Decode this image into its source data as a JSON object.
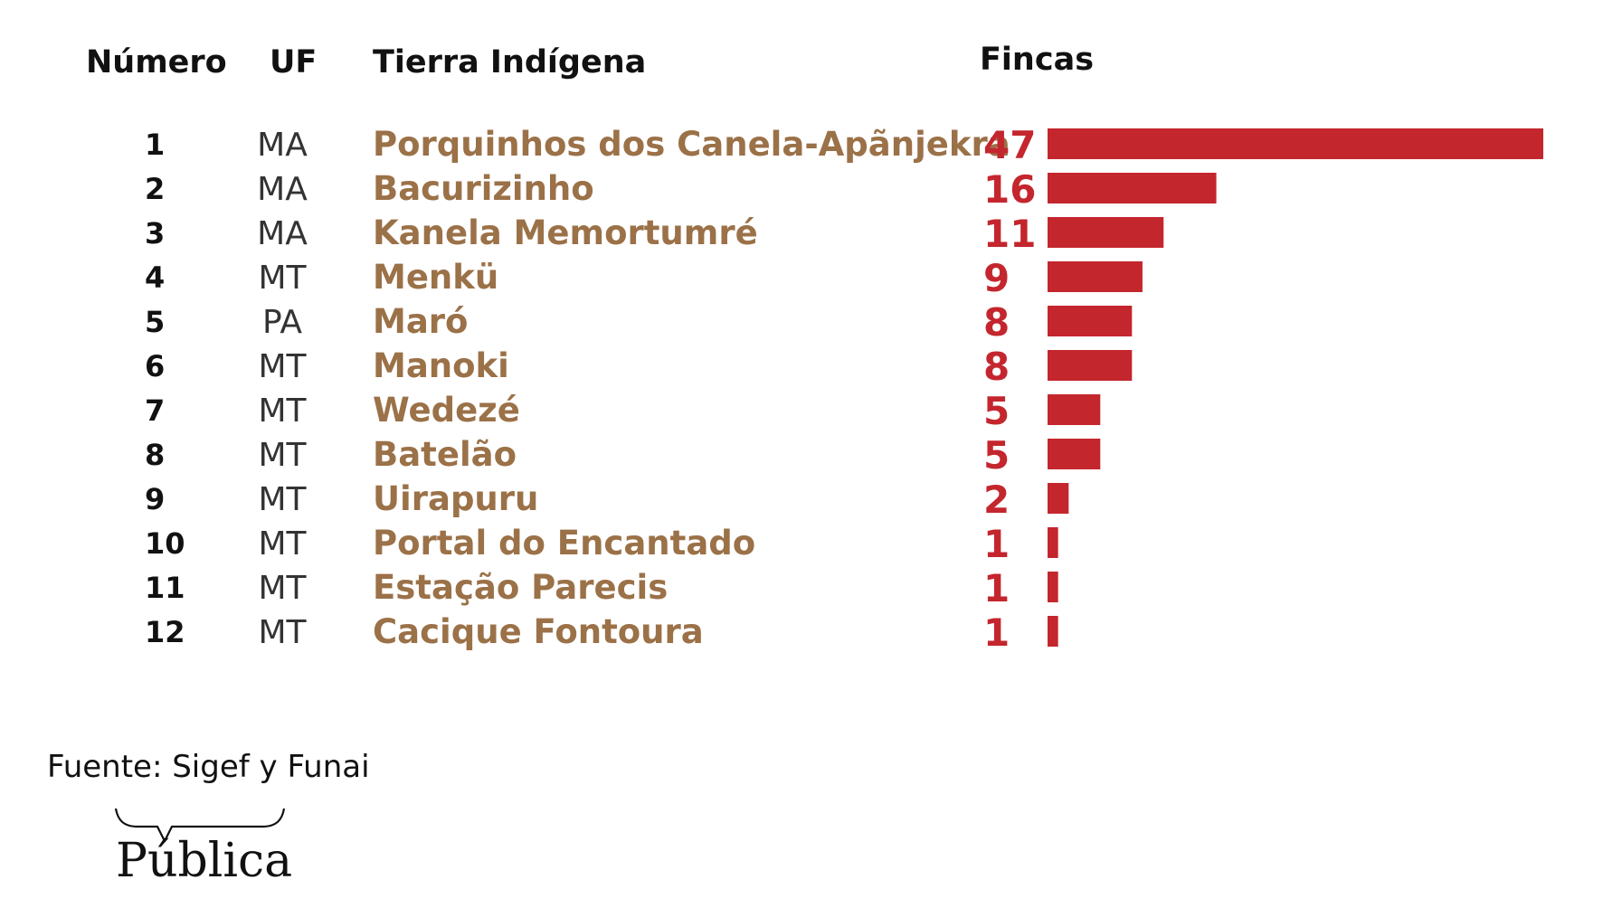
{
  "headers": {
    "numero": "Número",
    "uf": "UF",
    "tierra": "Tierra Indígena",
    "fincas": "Fincas"
  },
  "source_note": "Fuente: Sigef y Funai",
  "logo": {
    "text": "Pública"
  },
  "colors": {
    "bar": "#c4262e",
    "value_text": "#c4262e",
    "name_text": "#9b7148"
  },
  "chart_data": {
    "type": "bar",
    "orientation": "horizontal",
    "title": "",
    "xlabel": "",
    "ylabel": "",
    "xlim": [
      0,
      47
    ],
    "grid": false,
    "rows": [
      {
        "numero": "1",
        "uf": "MA",
        "tierra": "Porquinhos dos Canela-Apãnjekra",
        "fincas": 47
      },
      {
        "numero": "2",
        "uf": "MA",
        "tierra": "Bacurizinho",
        "fincas": 16
      },
      {
        "numero": "3",
        "uf": "MA",
        "tierra": "Kanela Memortumré",
        "fincas": 11
      },
      {
        "numero": "4",
        "uf": "MT",
        "tierra": "Menkü",
        "fincas": 9
      },
      {
        "numero": "5",
        "uf": "PA",
        "tierra": "Maró",
        "fincas": 8
      },
      {
        "numero": "6",
        "uf": "MT",
        "tierra": "Manoki",
        "fincas": 8
      },
      {
        "numero": "7",
        "uf": "MT",
        "tierra": "Wedezé",
        "fincas": 5
      },
      {
        "numero": "8",
        "uf": "MT",
        "tierra": "Batelão",
        "fincas": 5
      },
      {
        "numero": "9",
        "uf": "MT",
        "tierra": "Uirapuru",
        "fincas": 2
      },
      {
        "numero": "10",
        "uf": "MT",
        "tierra": "Portal do Encantado",
        "fincas": 1
      },
      {
        "numero": "11",
        "uf": "MT",
        "tierra": "Estação Parecis",
        "fincas": 1
      },
      {
        "numero": "12",
        "uf": "MT",
        "tierra": "Cacique Fontoura",
        "fincas": 1
      }
    ]
  }
}
